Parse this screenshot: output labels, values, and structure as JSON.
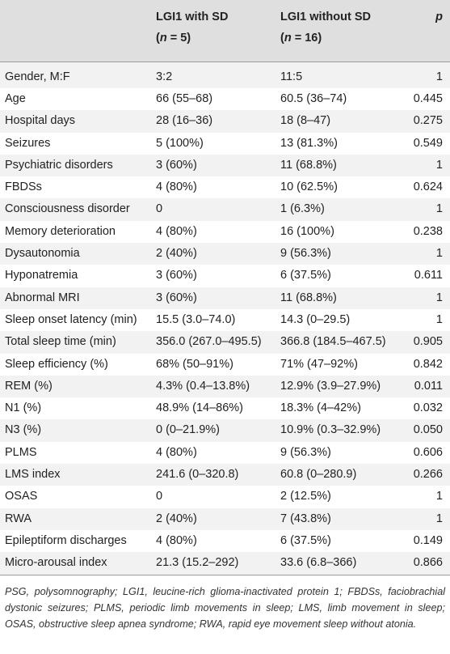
{
  "table": {
    "headers": {
      "col1": "",
      "col2_line1": "LGI1 with SD",
      "col2_n_prefix": "(",
      "col2_n_var": "n",
      "col2_n_suffix": " = 5)",
      "col3_line1": "LGI1 without SD",
      "col3_n_prefix": "(",
      "col3_n_var": "n",
      "col3_n_suffix": " = 16)",
      "col4": "p"
    },
    "rows": [
      {
        "label": "Gender, M:F",
        "with_sd": "3:2",
        "without_sd": "11:5",
        "p": "1"
      },
      {
        "label": "Age",
        "with_sd": "66 (55–68)",
        "without_sd": "60.5 (36–74)",
        "p": "0.445"
      },
      {
        "label": "Hospital days",
        "with_sd": "28 (16–36)",
        "without_sd": "18 (8–47)",
        "p": "0.275"
      },
      {
        "label": "Seizures",
        "with_sd": "5 (100%)",
        "without_sd": "13 (81.3%)",
        "p": "0.549"
      },
      {
        "label": "Psychiatric disorders",
        "with_sd": "3 (60%)",
        "without_sd": "11 (68.8%)",
        "p": "1"
      },
      {
        "label": "FBDSs",
        "with_sd": "4 (80%)",
        "without_sd": "10 (62.5%)",
        "p": "0.624"
      },
      {
        "label": "Consciousness disorder",
        "with_sd": "0",
        "without_sd": "1 (6.3%)",
        "p": "1"
      },
      {
        "label": "Memory deterioration",
        "with_sd": "4 (80%)",
        "without_sd": "16 (100%)",
        "p": "0.238"
      },
      {
        "label": "Dysautonomia",
        "with_sd": "2 (40%)",
        "without_sd": "9 (56.3%)",
        "p": "1"
      },
      {
        "label": "Hyponatremia",
        "with_sd": "3 (60%)",
        "without_sd": "6 (37.5%)",
        "p": "0.611"
      },
      {
        "label": "Abnormal MRI",
        "with_sd": "3 (60%)",
        "without_sd": "11 (68.8%)",
        "p": "1"
      },
      {
        "label": "Sleep onset latency (min)",
        "with_sd": "15.5 (3.0–74.0)",
        "without_sd": "14.3 (0–29.5)",
        "p": "1"
      },
      {
        "label": "Total sleep time (min)",
        "with_sd": "356.0 (267.0–495.5)",
        "without_sd": "366.8 (184.5–467.5)",
        "p": "0.905"
      },
      {
        "label": "Sleep efficiency (%)",
        "with_sd": "68% (50–91%)",
        "without_sd": "71% (47–92%)",
        "p": "0.842"
      },
      {
        "label": "REM (%)",
        "with_sd": "4.3% (0.4–13.8%)",
        "without_sd": "12.9% (3.9–27.9%)",
        "p": "0.011"
      },
      {
        "label": "N1 (%)",
        "with_sd": "48.9% (14–86%)",
        "without_sd": "18.3% (4–42%)",
        "p": "0.032"
      },
      {
        "label": "N3 (%)",
        "with_sd": "0 (0–21.9%)",
        "without_sd": "10.9% (0.3–32.9%)",
        "p": "0.050"
      },
      {
        "label": "PLMS",
        "with_sd": "4 (80%)",
        "without_sd": "9 (56.3%)",
        "p": "0.606"
      },
      {
        "label": "LMS index",
        "with_sd": "241.6 (0–320.8)",
        "without_sd": "60.8 (0–280.9)",
        "p": "0.266"
      },
      {
        "label": "OSAS",
        "with_sd": "0",
        "without_sd": "2 (12.5%)",
        "p": "1"
      },
      {
        "label": "RWA",
        "with_sd": "2 (40%)",
        "without_sd": "7 (43.8%)",
        "p": "1"
      },
      {
        "label": "Epileptiform discharges",
        "with_sd": "4 (80%)",
        "without_sd": "6 (37.5%)",
        "p": "0.149"
      },
      {
        "label": "Micro-arousal index",
        "with_sd": "21.3 (15.2–292)",
        "without_sd": "33.6 (6.8–366)",
        "p": "0.866"
      }
    ]
  },
  "footnote": "PSG, polysomnography; LGI1, leucine-rich glioma-inactivated protein 1; FBDSs, faciobrachial dystonic seizures; PLMS, periodic limb movements in sleep; LMS, limb movement in sleep; OSAS, obstructive sleep apnea syndrome; RWA, rapid eye movement sleep without atonia."
}
